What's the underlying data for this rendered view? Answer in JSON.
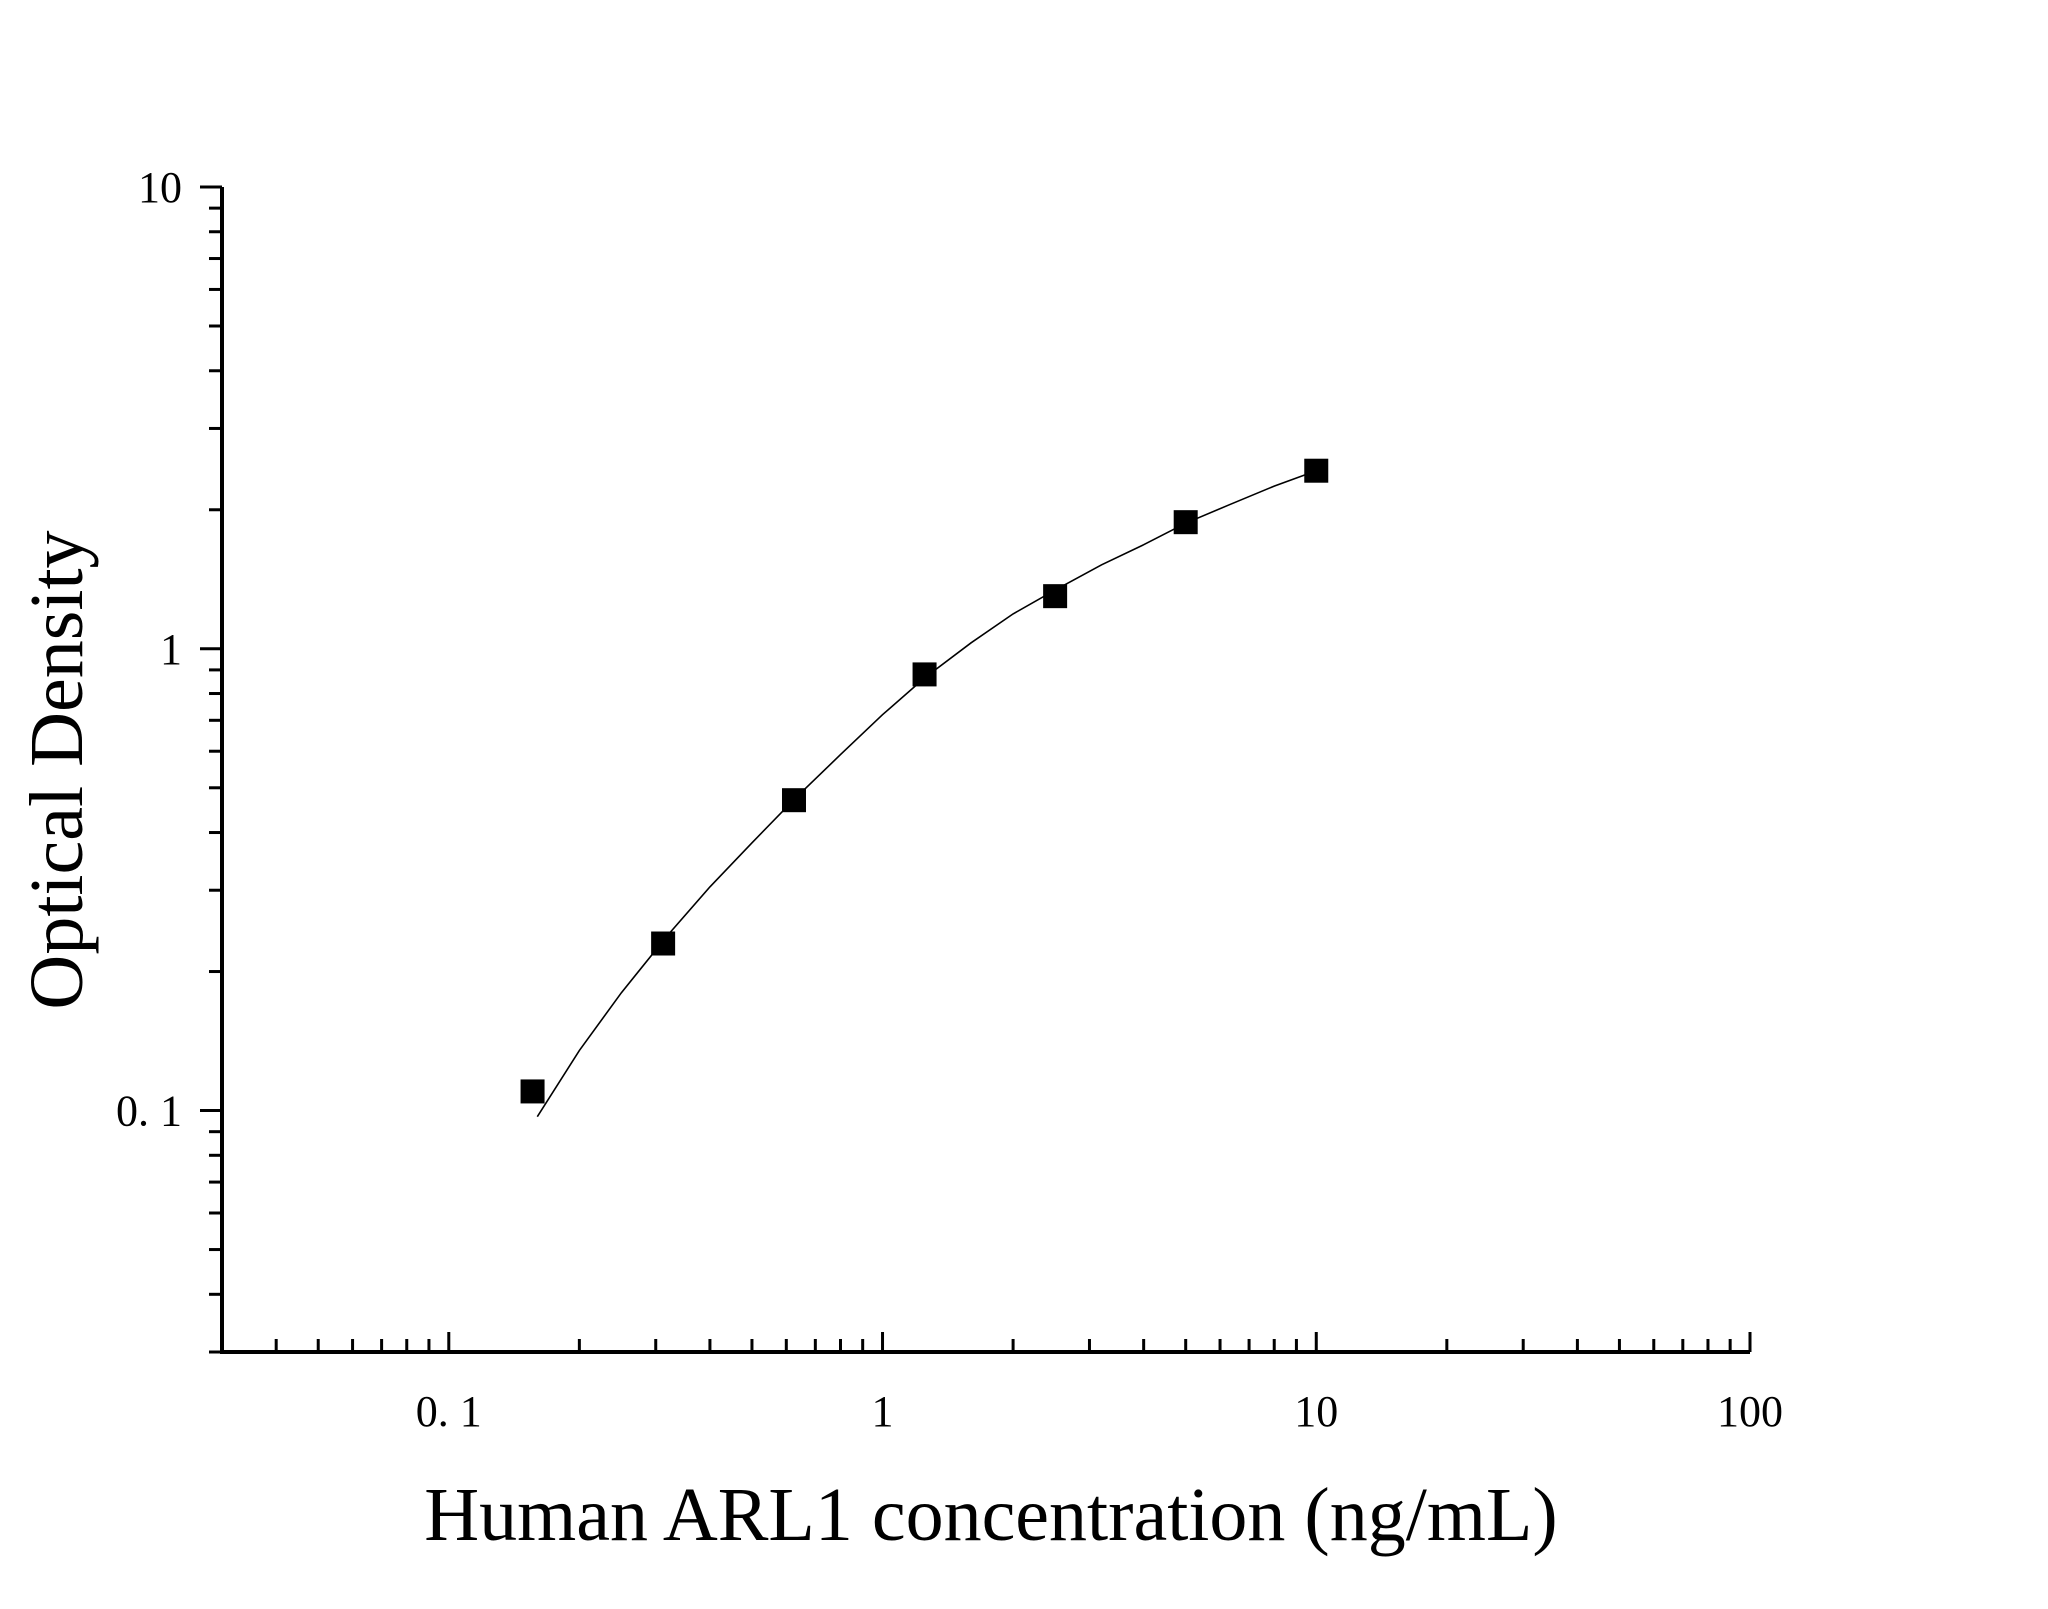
{
  "chart_data": {
    "type": "scatter",
    "title": "",
    "xlabel": "Human ARL1 concentration (ng/mL)",
    "ylabel": "Optical Density",
    "x_scale": "log",
    "y_scale": "log",
    "xlim": [
      0.03,
      100
    ],
    "ylim": [
      0.03,
      10
    ],
    "x_ticks": [
      0.1,
      1,
      10,
      100
    ],
    "x_tick_labels": [
      "0. 1",
      "1",
      "10",
      "100"
    ],
    "y_ticks": [
      0.1,
      1,
      10
    ],
    "y_tick_labels": [
      "0. 1",
      "1",
      "10"
    ],
    "grid": false,
    "legend": "none",
    "series": [
      {
        "marker": "square",
        "color": "#000000",
        "x": [
          0.156,
          0.312,
          0.625,
          1.25,
          2.5,
          5,
          10
        ],
        "y": [
          0.11,
          0.23,
          0.47,
          0.88,
          1.3,
          1.88,
          2.43
        ]
      }
    ],
    "fit_curve": {
      "color": "#000000",
      "x": [
        0.16,
        0.2,
        0.25,
        0.32,
        0.4,
        0.5,
        0.63,
        0.8,
        1.0,
        1.25,
        1.6,
        2.0,
        2.5,
        3.2,
        4.0,
        5.0,
        6.3,
        8.0,
        10.0
      ],
      "y": [
        0.097,
        0.135,
        0.18,
        0.24,
        0.305,
        0.38,
        0.475,
        0.59,
        0.72,
        0.865,
        1.03,
        1.19,
        1.34,
        1.52,
        1.68,
        1.87,
        2.05,
        2.25,
        2.43
      ]
    }
  }
}
